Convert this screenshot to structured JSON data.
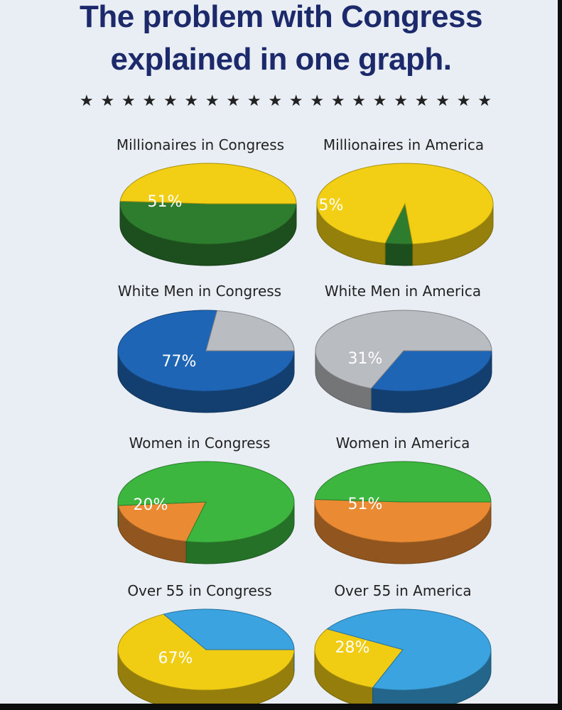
{
  "title_line1": "The problem with Congress",
  "title_line2": "explained in one graph.",
  "stars": "★★★★★★★★★★★★★★★★★★★★",
  "chart_data": [
    {
      "type": "pie",
      "title": "Millionaires in Congress",
      "slices": [
        {
          "value": 51,
          "label": "51%",
          "color": "#2e7d2f"
        },
        {
          "value": 49,
          "label": "",
          "color": "#f2cf14"
        }
      ]
    },
    {
      "type": "pie",
      "title": "Millionaires in America",
      "slices": [
        {
          "value": 5,
          "label": "5%",
          "color": "#2e7d2f"
        },
        {
          "value": 95,
          "label": "",
          "color": "#f2cf14"
        }
      ]
    },
    {
      "type": "pie",
      "title": "White Men in Congress",
      "slices": [
        {
          "value": 77,
          "label": "77%",
          "color": "#1f65b5"
        },
        {
          "value": 23,
          "label": "",
          "color": "#b9bcc0"
        }
      ]
    },
    {
      "type": "pie",
      "title": "White Men in America",
      "slices": [
        {
          "value": 31,
          "label": "31%",
          "color": "#1f65b5"
        },
        {
          "value": 69,
          "label": "",
          "color": "#b9bcc0"
        }
      ]
    },
    {
      "type": "pie",
      "title": "Women in Congress",
      "slices": [
        {
          "value": 20,
          "label": "20%",
          "color": "#ea8a32"
        },
        {
          "value": 80,
          "label": "",
          "color": "#3cb63f"
        }
      ]
    },
    {
      "type": "pie",
      "title": "Women in America",
      "slices": [
        {
          "value": 51,
          "label": "51%",
          "color": "#ea8a32"
        },
        {
          "value": 49,
          "label": "",
          "color": "#3cb63f"
        }
      ]
    },
    {
      "type": "pie",
      "title": "Over 55 in Congress",
      "slices": [
        {
          "value": 67,
          "label": "67%",
          "color": "#f0cc12"
        },
        {
          "value": 33,
          "label": "",
          "color": "#3aa3e0"
        }
      ]
    },
    {
      "type": "pie",
      "title": "Over 55 in America",
      "slices": [
        {
          "value": 28,
          "label": "28%",
          "color": "#f0cc12"
        },
        {
          "value": 72,
          "label": "",
          "color": "#3aa3e0"
        }
      ]
    }
  ]
}
